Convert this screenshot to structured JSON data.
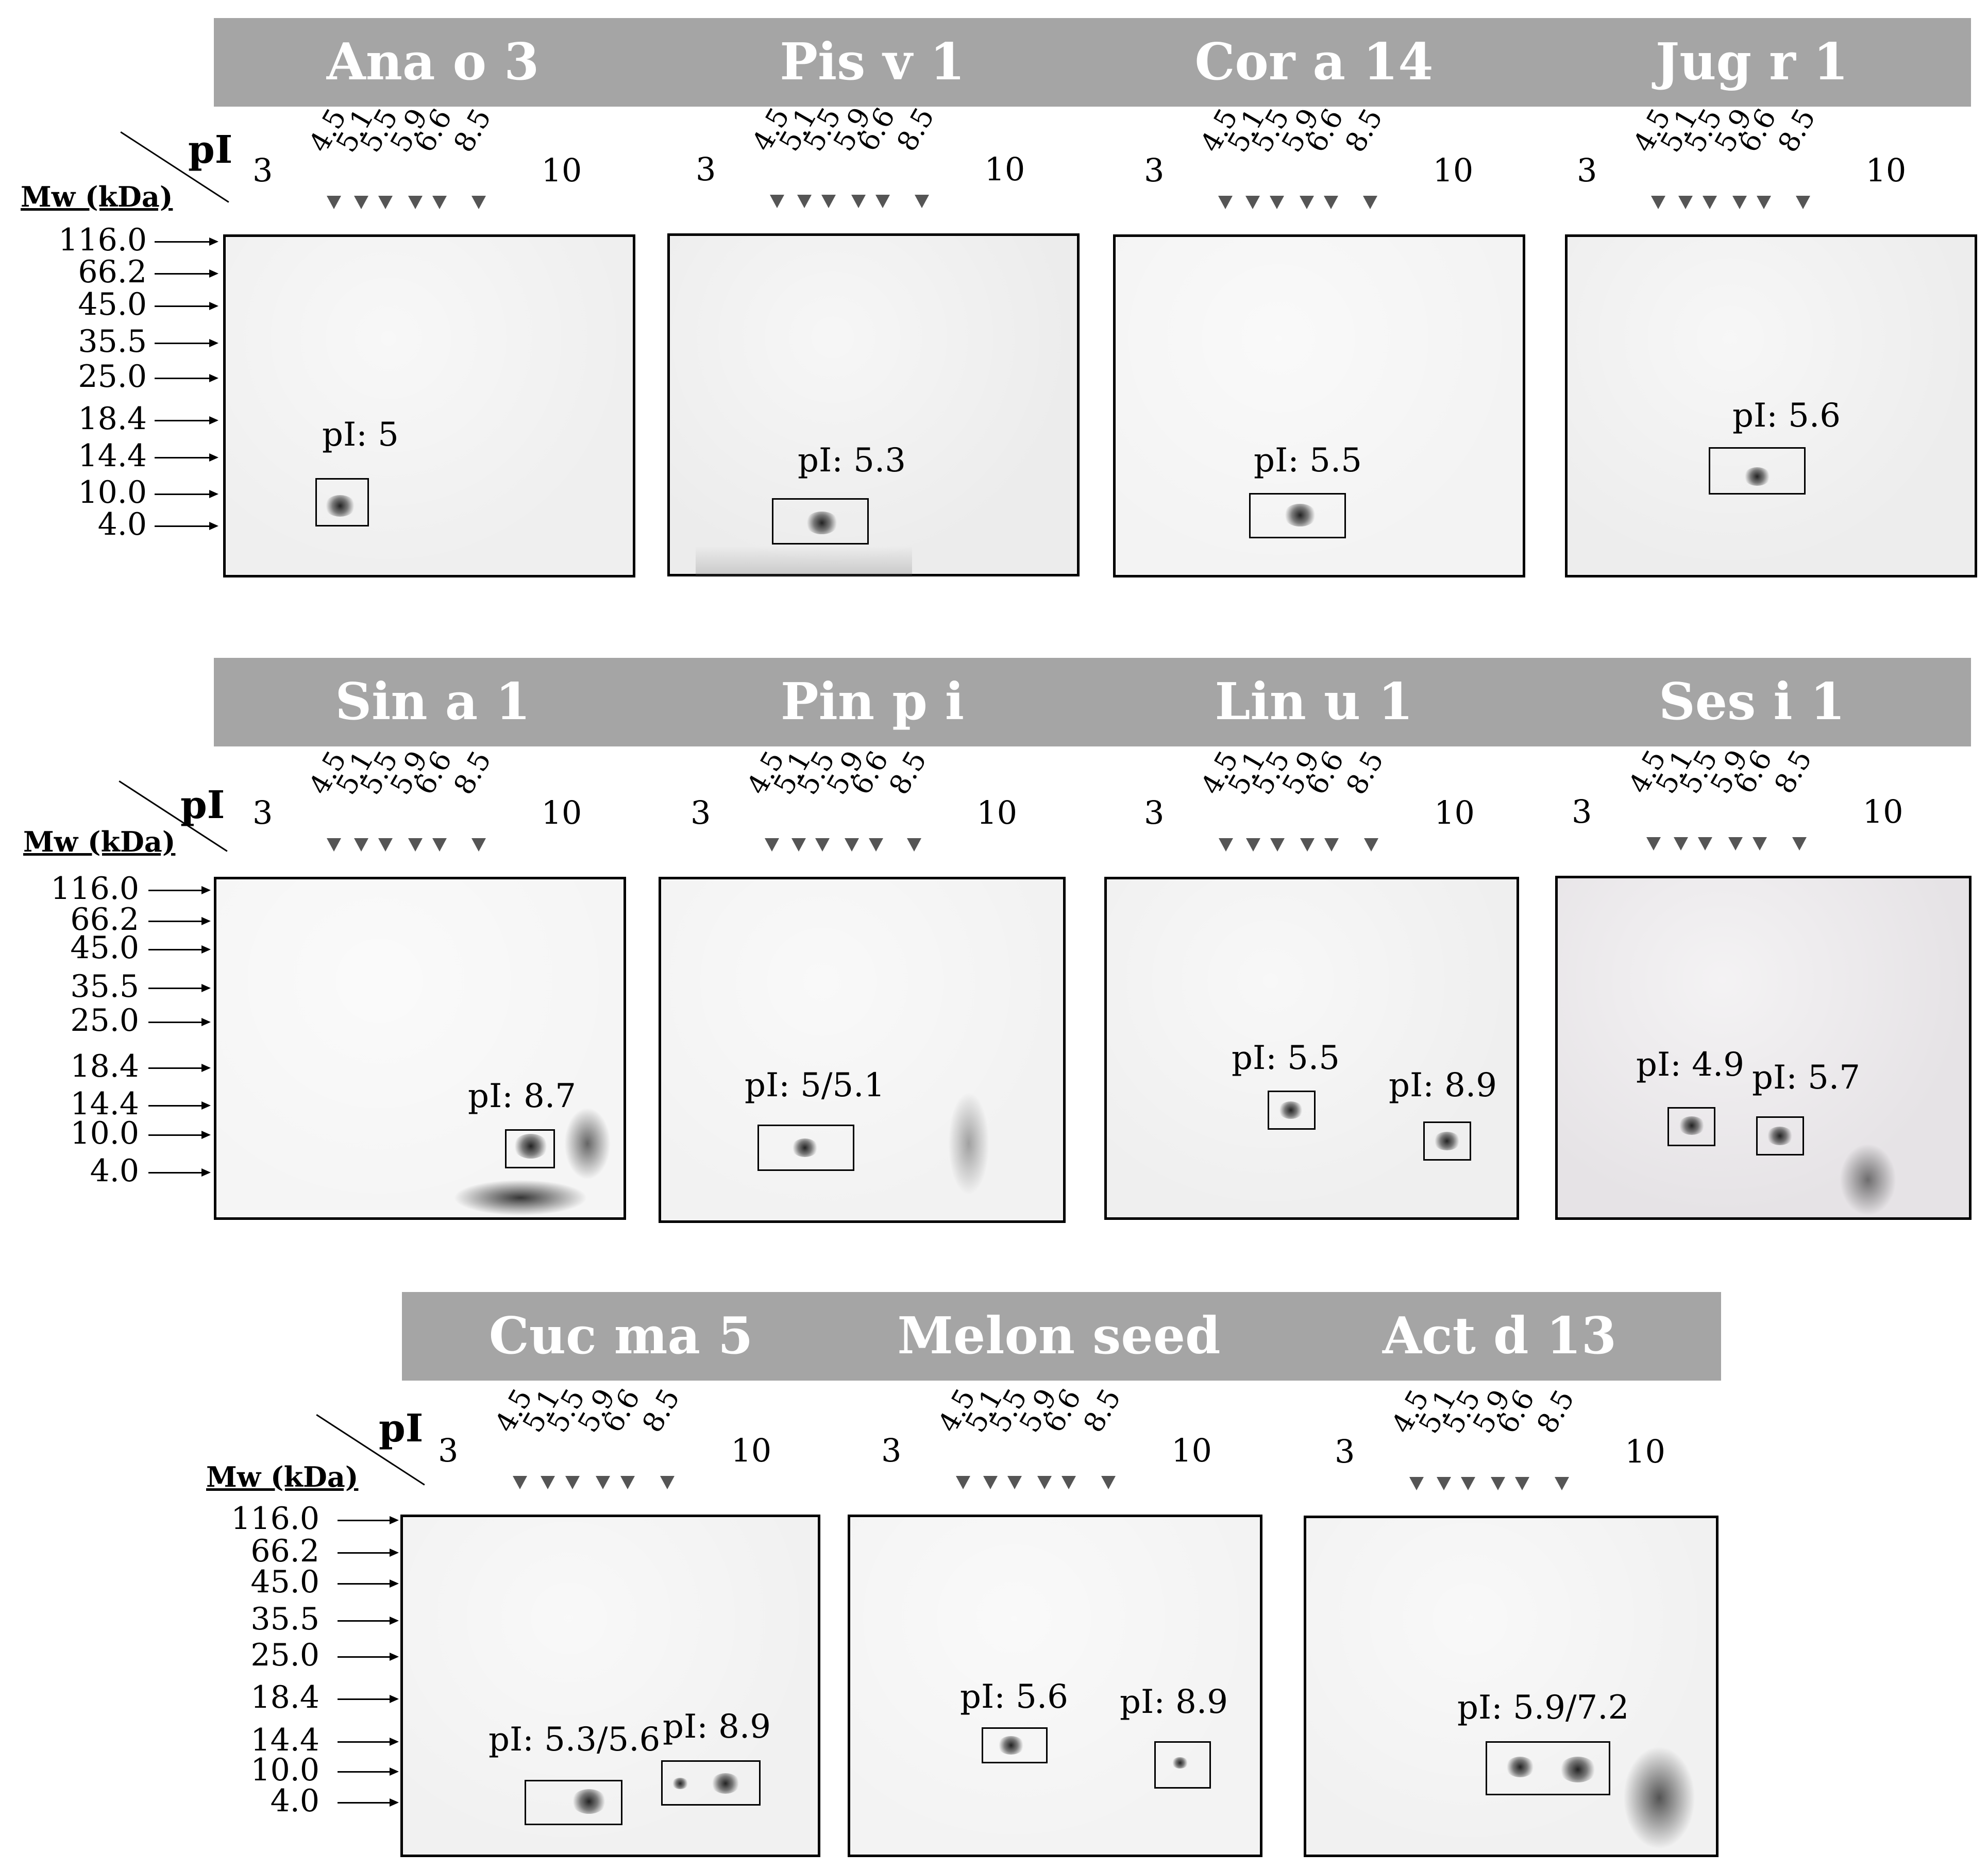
{
  "pi_axis_title": "pI",
  "mw_axis_title": "Mw (kDa)",
  "pi_ends": [
    "3",
    "10"
  ],
  "pi_ticks": [
    "4.5",
    "5.1",
    "5.5",
    "5.9",
    "6.6",
    "8.5"
  ],
  "mw_markers": [
    "116.0",
    "66.2",
    "45.0",
    "35.5",
    "25.0",
    "18.4",
    "14.4",
    "10.0",
    "4.0"
  ],
  "rows": [
    {
      "banners": [
        "Ana o 3",
        "Pis v 1",
        "Cor a 14",
        "Jug r 1"
      ],
      "panels": [
        {
          "allergen": "Ana o 3",
          "spots": [
            {
              "label": "pI: 5"
            }
          ]
        },
        {
          "allergen": "Pis v 1",
          "spots": [
            {
              "label": "pI: 5.3"
            }
          ]
        },
        {
          "allergen": "Cor a 14",
          "spots": [
            {
              "label": "pI: 5.5"
            }
          ]
        },
        {
          "allergen": "Jug r 1",
          "spots": [
            {
              "label": "pI: 5.6"
            }
          ]
        }
      ]
    },
    {
      "banners": [
        "Sin a 1",
        "Pin p i",
        "Lin u 1",
        "Ses i 1"
      ],
      "panels": [
        {
          "allergen": "Sin a 1",
          "spots": [
            {
              "label": "pI: 8.7"
            }
          ]
        },
        {
          "allergen": "Pin p i",
          "spots": [
            {
              "label": "pI: 5/5.1"
            }
          ]
        },
        {
          "allergen": "Lin u 1",
          "spots": [
            {
              "label": "pI: 5.5"
            },
            {
              "label": "pI: 8.9"
            }
          ]
        },
        {
          "allergen": "Ses i 1",
          "spots": [
            {
              "label": "pI: 4.9"
            },
            {
              "label": "pI: 5.7"
            }
          ]
        }
      ]
    },
    {
      "banners": [
        "Cuc ma 5",
        "Melon seed",
        "Act d 13"
      ],
      "panels": [
        {
          "allergen": "Cuc ma 5",
          "spots": [
            {
              "label": "pI: 5.3/5.6"
            },
            {
              "label": "pI: 8.9"
            }
          ]
        },
        {
          "allergen": "Melon seed",
          "spots": [
            {
              "label": "pI: 5.6"
            },
            {
              "label": "pI: 8.9"
            }
          ]
        },
        {
          "allergen": "Act d 13",
          "spots": [
            {
              "label": "pI: 5.9/7.2"
            }
          ]
        }
      ]
    }
  ]
}
